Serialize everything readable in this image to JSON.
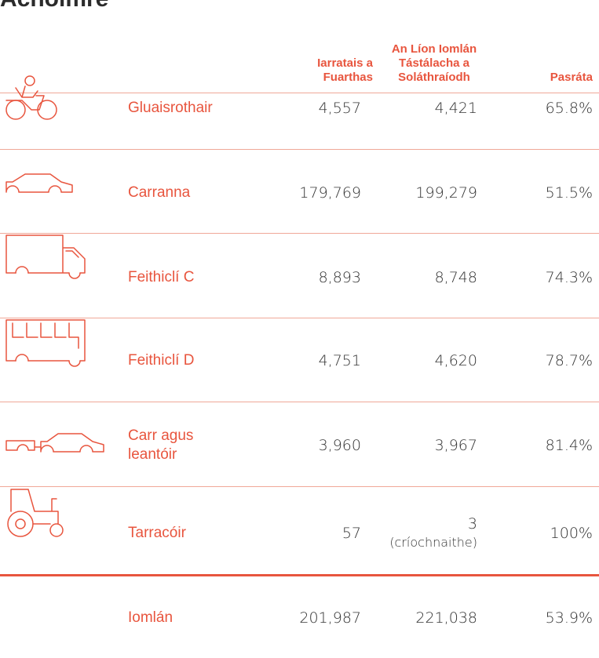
{
  "title": "Achoimre",
  "table": {
    "headers": [
      "Iarratais a Fuarthas",
      "An Líon Iomlán Tástálacha a Soláthraíodh",
      "Pasráta"
    ],
    "rows": [
      {
        "label": "Gluaisrothair",
        "received": "4,557",
        "tests": "4,421",
        "rate": "65.8%"
      },
      {
        "label": "Carranna",
        "received": "179,769",
        "tests": "199,279",
        "rate": "51.5%"
      },
      {
        "label": "Feithiclí C",
        "received": "8,893",
        "tests": "8,748",
        "rate": "74.3%"
      },
      {
        "label": "Feithiclí D",
        "received": "4,751",
        "tests": "4,620",
        "rate": "78.7%"
      },
      {
        "label": "Carr agus leantóir",
        "received": "3,960",
        "tests": "3,967",
        "rate": "81.4%"
      },
      {
        "label": "Tarracóir",
        "received": "57",
        "tests": "3",
        "tests_note": "(críochnaithe)",
        "rate": "100%"
      }
    ],
    "total": {
      "label": "Iomlán",
      "received": "201,987",
      "tests": "221,038",
      "rate": "53.9%"
    }
  }
}
